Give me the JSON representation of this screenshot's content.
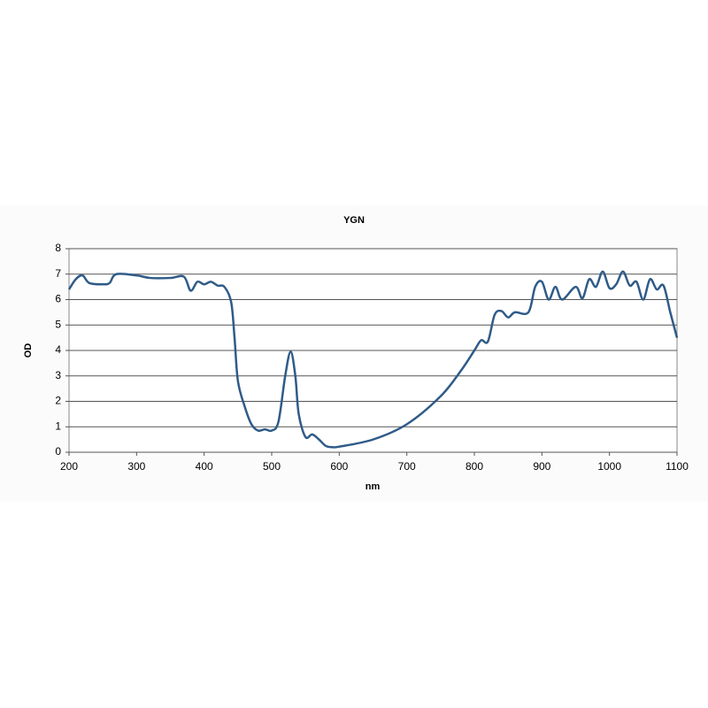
{
  "chart_data": {
    "type": "line",
    "title": "YGN",
    "x_label": "nm",
    "y_label": "OD",
    "x": [
      200,
      210,
      220,
      230,
      250,
      260,
      270,
      300,
      320,
      350,
      370,
      380,
      390,
      400,
      410,
      420,
      430,
      440,
      445,
      450,
      460,
      470,
      480,
      490,
      500,
      510,
      520,
      528,
      535,
      540,
      550,
      560,
      570,
      580,
      590,
      600,
      650,
      700,
      750,
      780,
      800,
      810,
      820,
      830,
      840,
      850,
      860,
      880,
      890,
      900,
      910,
      920,
      930,
      950,
      960,
      970,
      980,
      990,
      1000,
      1010,
      1020,
      1030,
      1040,
      1050,
      1060,
      1070,
      1080,
      1090,
      1100
    ],
    "series": [
      {
        "name": "YGN",
        "color": "#2f5b88",
        "values": [
          6.4,
          6.8,
          6.95,
          6.65,
          6.6,
          6.65,
          7.0,
          6.95,
          6.85,
          6.85,
          6.9,
          6.35,
          6.7,
          6.6,
          6.7,
          6.55,
          6.5,
          5.9,
          4.5,
          2.8,
          1.8,
          1.1,
          0.85,
          0.9,
          0.85,
          1.2,
          3.0,
          3.95,
          3.0,
          1.5,
          0.6,
          0.7,
          0.5,
          0.25,
          0.2,
          0.22,
          0.5,
          1.1,
          2.2,
          3.2,
          4.0,
          4.4,
          4.35,
          5.4,
          5.55,
          5.3,
          5.5,
          5.5,
          6.5,
          6.7,
          6.0,
          6.5,
          6.0,
          6.5,
          6.05,
          6.8,
          6.5,
          7.1,
          6.45,
          6.6,
          7.1,
          6.55,
          6.7,
          6.0,
          6.8,
          6.4,
          6.55,
          5.5,
          4.5
        ]
      }
    ],
    "xlim": [
      200,
      1100
    ],
    "xticks": [
      200,
      300,
      400,
      500,
      600,
      700,
      800,
      900,
      1000,
      1100
    ],
    "ylim": [
      0,
      8
    ],
    "yticks": [
      0,
      1,
      2,
      3,
      4,
      5,
      6,
      7,
      8
    ],
    "grid": true
  }
}
